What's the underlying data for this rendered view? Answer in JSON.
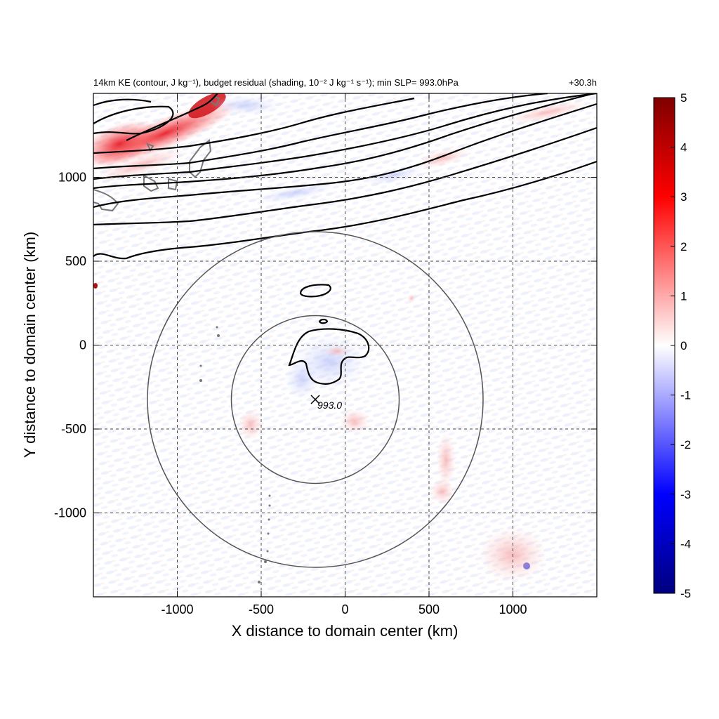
{
  "chart_data": {
    "type": "heatmap",
    "title_left": "14km KE (contour, J kg⁻¹), budget residual (shading, 10⁻² J kg⁻¹ s⁻¹); min SLP= 993.0hPa",
    "title_right": "+30.3h",
    "xlabel": "X distance to domain center (km)",
    "ylabel": "Y distance to domain center (km)",
    "xlim": [
      -1500,
      1500
    ],
    "ylim": [
      -1500,
      1500
    ],
    "xticks": [
      -1000,
      -500,
      0,
      500,
      1000
    ],
    "yticks": [
      -1000,
      -500,
      0,
      500,
      1000
    ],
    "grid": true,
    "colorbar": {
      "min": -5,
      "max": 5,
      "ticks": [
        5,
        4,
        3,
        2,
        1,
        0,
        -1,
        -2,
        -3,
        -4,
        -5
      ],
      "colors": [
        "#00007f",
        "#0000ff",
        "#ffffff",
        "#ff0000",
        "#7f0000"
      ]
    },
    "center_marker": {
      "x": -180,
      "y": -320,
      "label": "993.0"
    },
    "range_circles_km": [
      500,
      1000
    ],
    "contour_color": "#000000",
    "coastline_color": "#777777"
  }
}
